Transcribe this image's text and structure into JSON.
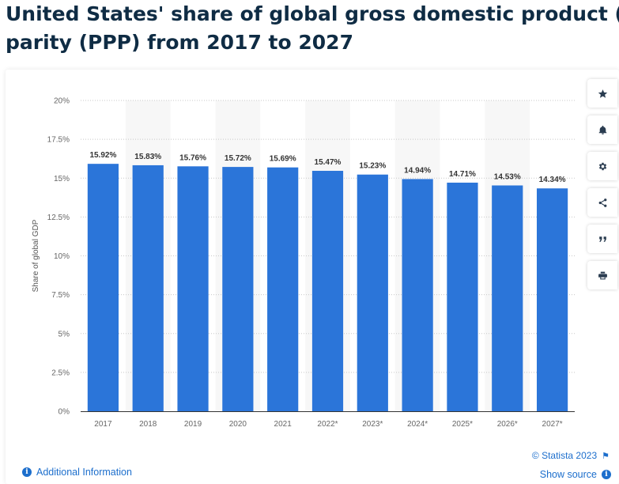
{
  "title": {
    "line1": "United States' share of global gross domestic product (GDP) based on purchasing-power-",
    "line2": "parity (PPP) from 2017 to 2027"
  },
  "toolbar": [
    {
      "name": "favorite-star-icon",
      "icon": "star"
    },
    {
      "name": "notification-bell-icon",
      "icon": "bell"
    },
    {
      "name": "settings-gear-icon",
      "icon": "gear"
    },
    {
      "name": "share-icon",
      "icon": "share"
    },
    {
      "name": "cite-quote-icon",
      "icon": "quote"
    },
    {
      "name": "print-icon",
      "icon": "print"
    }
  ],
  "footer": {
    "additional_info": "Additional Information",
    "copyright": "© Statista 2023",
    "show_source": "Show source"
  },
  "colors": {
    "bar": "#2b75d9",
    "title": "#0f2c44",
    "link": "#1c6ecc",
    "band": "#f7f7f7"
  },
  "chart_data": {
    "type": "bar",
    "categories": [
      "2017",
      "2018",
      "2019",
      "2020",
      "2021",
      "2022*",
      "2023*",
      "2024*",
      "2025*",
      "2026*",
      "2027*"
    ],
    "values": [
      15.92,
      15.83,
      15.76,
      15.72,
      15.69,
      15.47,
      15.23,
      14.94,
      14.71,
      14.53,
      14.34
    ],
    "data_labels": [
      "15.92%",
      "15.83%",
      "15.76%",
      "15.72%",
      "15.69%",
      "15.47%",
      "15.23%",
      "14.94%",
      "14.71%",
      "14.53%",
      "14.34%"
    ],
    "ylabel": "Share of global GDP",
    "xlabel": "",
    "ylim": [
      0,
      20
    ],
    "yticks": [
      0,
      2.5,
      5,
      7.5,
      10,
      12.5,
      15,
      17.5,
      20
    ],
    "ytick_labels": [
      "0%",
      "2.5%",
      "5%",
      "7.5%",
      "10%",
      "12.5%",
      "15%",
      "17.5%",
      "20%"
    ],
    "grid": true
  }
}
